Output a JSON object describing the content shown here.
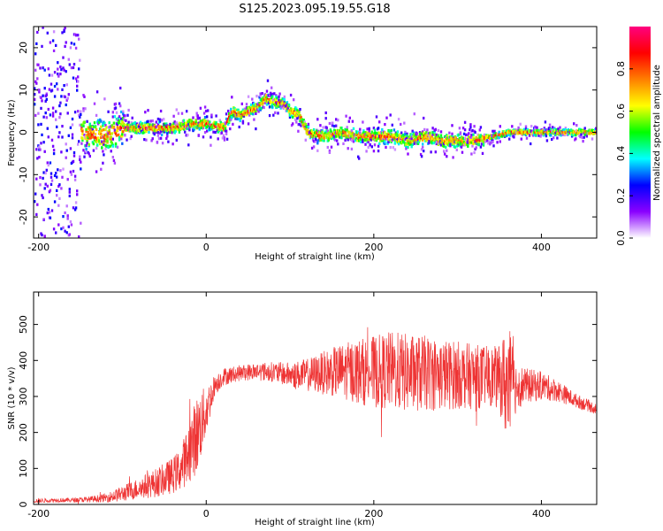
{
  "title": "S125.2023.095.19.55.G18",
  "chart_data": [
    {
      "type": "heatmap",
      "name": "spectrogram",
      "xlabel": "Height of straight line (km)",
      "ylabel": "Frequency (Hz)",
      "xlim": [
        -206,
        466
      ],
      "ylim": [
        -25,
        25
      ],
      "xticks": [
        -200,
        0,
        200,
        400
      ],
      "yticks": [
        -20,
        -10,
        0,
        10,
        20
      ],
      "colorbar": {
        "label": "Normalized spectral amplitude",
        "range": [
          0,
          1
        ],
        "ticks": [
          0.0,
          0.2,
          0.4,
          0.6,
          0.8
        ],
        "colormap": [
          "#ffffff",
          "#8a00ff",
          "#0000ff",
          "#00ffff",
          "#00ff00",
          "#ffff00",
          "#ff7f00",
          "#ff0000",
          "#ff0080"
        ]
      },
      "ridge": {
        "x": [
          -150,
          -120,
          -100,
          -80,
          -60,
          -40,
          -20,
          0,
          20,
          30,
          40,
          60,
          70,
          80,
          90,
          100,
          110,
          120,
          140,
          160,
          180,
          200,
          220,
          240,
          260,
          280,
          300,
          320,
          340,
          360,
          380,
          400,
          420,
          440,
          466
        ],
        "y": [
          0,
          -1,
          1,
          1,
          1,
          1,
          2,
          2,
          1,
          5,
          4,
          6,
          8,
          7,
          7,
          5,
          4,
          0,
          -1,
          0,
          -1,
          -1,
          -1,
          -2,
          -1,
          -2,
          -2,
          -2,
          -1,
          0,
          0,
          0,
          0,
          0,
          0
        ]
      },
      "grid": false
    },
    {
      "type": "line",
      "name": "snr",
      "xlabel": "Height of straight line (km)",
      "ylabel": "SNR (10 * v/v)",
      "xlim": [
        -206,
        466
      ],
      "ylim": [
        0,
        590
      ],
      "xticks": [
        -200,
        0,
        200,
        400
      ],
      "yticks": [
        0,
        100,
        200,
        300,
        400,
        500
      ],
      "series": [
        {
          "color": "#ee3333",
          "envelope": {
            "x": [
              -206,
              -180,
              -160,
              -140,
              -120,
              -100,
              -80,
              -60,
              -40,
              -30,
              -20,
              -10,
              0,
              10,
              20,
              40,
              60,
              80,
              100,
              120,
              140,
              160,
              180,
              200,
              220,
              240,
              260,
              280,
              300,
              320,
              340,
              350,
              360,
              370,
              380,
              400,
              420,
              440,
              466
            ],
            "mean": [
              10,
              12,
              12,
              14,
              18,
              30,
              45,
              60,
              80,
              100,
              150,
              200,
              260,
              330,
              355,
              365,
              370,
              368,
              360,
              360,
              365,
              370,
              370,
              368,
              372,
              365,
              365,
              360,
              360,
              355,
              355,
              350,
              330,
              330,
              330,
              330,
              315,
              290,
              265
            ],
            "spread": [
              6,
              6,
              6,
              8,
              12,
              22,
              30,
              40,
              50,
              60,
              90,
              110,
              70,
              30,
              25,
              22,
              25,
              28,
              35,
              45,
              60,
              75,
              90,
              100,
              110,
              110,
              105,
              100,
              95,
              90,
              85,
              90,
              180,
              70,
              50,
              40,
              30,
              20,
              15
            ]
          }
        }
      ],
      "grid": false
    }
  ]
}
